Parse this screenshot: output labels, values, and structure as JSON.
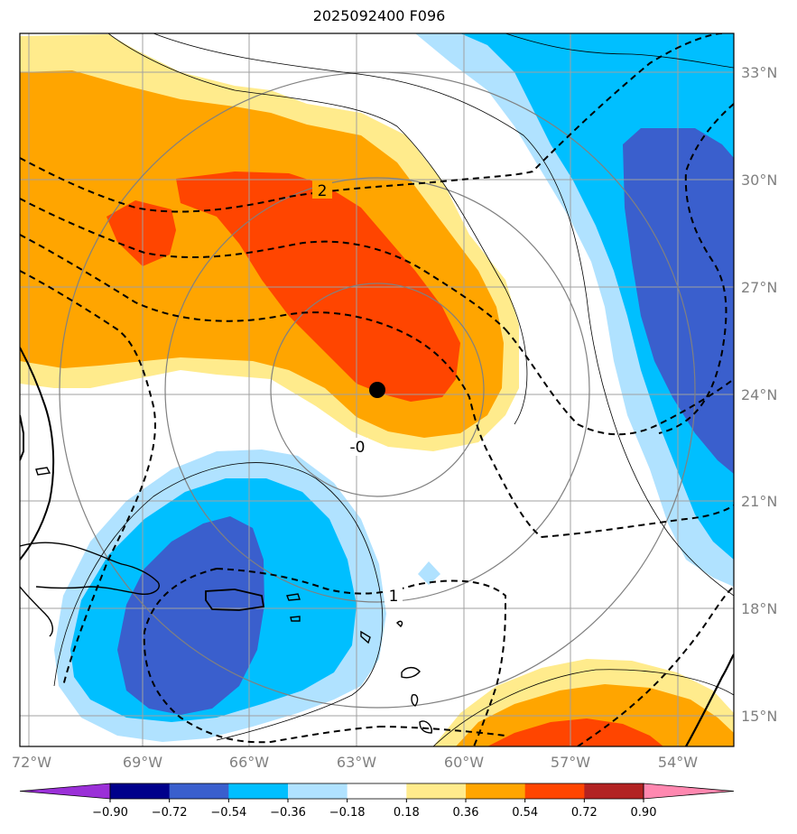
{
  "title": "2025092400 F096",
  "map": {
    "lon_labels": [
      "72°W",
      "69°W",
      "66°W",
      "63°W",
      "60°W",
      "57°W",
      "54°W"
    ],
    "lat_labels": [
      "33°N",
      "30°N",
      "27°N",
      "24°N",
      "21°N",
      "18°N",
      "15°N"
    ],
    "storm_center": {
      "lon": "62.5°W",
      "lat": "24.1°N"
    },
    "contour_labels": [
      "2",
      "-0",
      "1"
    ]
  },
  "colorbar": {
    "ticks": [
      "−0.90",
      "−0.72",
      "−0.54",
      "−0.36",
      "−0.18",
      "0.18",
      "0.36",
      "0.54",
      "0.72",
      "0.90"
    ],
    "colors": [
      "#9b30d8",
      "#00008b",
      "#3a5fcd",
      "#00bfff",
      "#b0e2ff",
      "#ffffff",
      "#ffeb8c",
      "#ffa500",
      "#ff4500",
      "#b22222",
      "#ff88b0"
    ]
  }
}
